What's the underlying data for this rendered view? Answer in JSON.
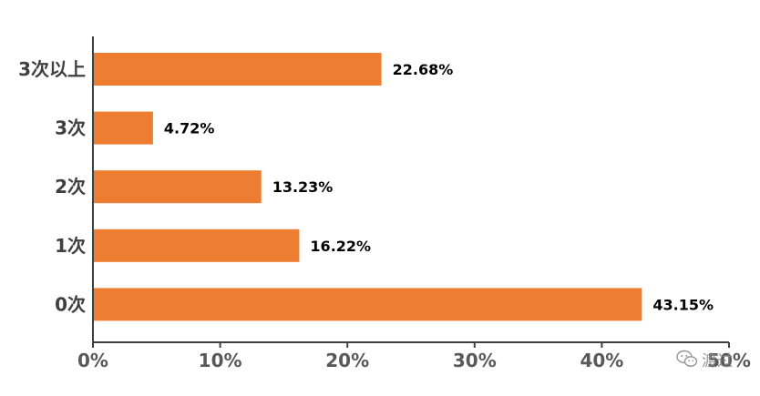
{
  "chart_data": {
    "type": "bar",
    "orientation": "horizontal",
    "categories": [
      "3次以上",
      "3次",
      "2次",
      "1次",
      "0次"
    ],
    "values": [
      22.68,
      4.72,
      13.23,
      16.22,
      43.15
    ],
    "data_labels": [
      "22.68%",
      "4.72%",
      "13.23%",
      "16.22%",
      "43.15%"
    ],
    "xlim": [
      0,
      50
    ],
    "xticks": [
      0,
      10,
      20,
      30,
      40,
      50
    ],
    "xtick_labels": [
      "0%",
      "10%",
      "20%",
      "30%",
      "40%",
      "50%"
    ],
    "bar_color": "#ED7D31",
    "grid": false,
    "legend": "none"
  },
  "watermark": {
    "icon": "wechat-icon",
    "text": "渡过"
  }
}
